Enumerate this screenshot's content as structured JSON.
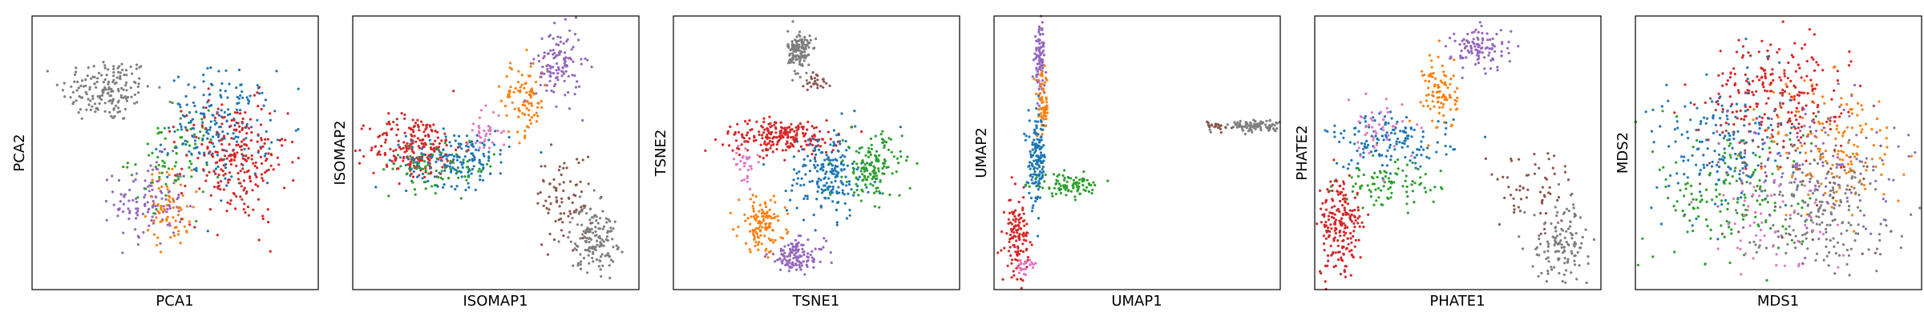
{
  "colors": {
    "c0": "#1f77b4",
    "c1": "#ff7f0e",
    "c2": "#2ca02c",
    "c3": "#d62728",
    "c4": "#9467bd",
    "c5": "#8c564b",
    "c6": "#e377c2",
    "c7": "#7f7f7f"
  },
  "chart_data": [
    {
      "type": "scatter",
      "xlabel": "PCA1",
      "ylabel": "PCA2",
      "xlim": [
        0,
        100
      ],
      "ylim": [
        0,
        100
      ],
      "ticks": false,
      "clusters": [
        {
          "color": "c7",
          "cx": 26,
          "cy": 73,
          "sx": 8,
          "sy": 6,
          "n": 170
        },
        {
          "color": "c4",
          "cx": 41,
          "cy": 32,
          "sx": 6,
          "sy": 8,
          "n": 120
        },
        {
          "color": "c1",
          "cx": 48,
          "cy": 30,
          "sx": 4,
          "sy": 7,
          "n": 70
        },
        {
          "color": "c2",
          "cx": 50,
          "cy": 48,
          "sx": 8,
          "sy": 8,
          "n": 80
        },
        {
          "color": "c0",
          "cx": 66,
          "cy": 60,
          "sx": 9,
          "sy": 10,
          "n": 200
        },
        {
          "color": "c3",
          "cx": 71,
          "cy": 47,
          "sx": 9,
          "sy": 11,
          "n": 240
        }
      ]
    },
    {
      "type": "scatter",
      "xlabel": "ISOMAP1",
      "ylabel": "ISOMAP2",
      "xlim": [
        0,
        100
      ],
      "ylim": [
        0,
        100
      ],
      "ticks": false,
      "clusters": [
        {
          "color": "c3",
          "cx": 22,
          "cy": 52,
          "sx": 8,
          "sy": 6,
          "n": 220
        },
        {
          "color": "c0",
          "cx": 37,
          "cy": 48,
          "sx": 9,
          "sy": 5,
          "n": 170
        },
        {
          "color": "c2",
          "cx": 30,
          "cy": 44,
          "sx": 10,
          "sy": 4,
          "n": 70
        },
        {
          "color": "c6",
          "cx": 46,
          "cy": 58,
          "sx": 3,
          "sy": 4,
          "n": 35
        },
        {
          "color": "c1",
          "cx": 60,
          "cy": 70,
          "sx": 4,
          "sy": 7,
          "n": 90
        },
        {
          "color": "c4",
          "cx": 72,
          "cy": 82,
          "sx": 4,
          "sy": 7,
          "n": 120
        },
        {
          "color": "c5",
          "cx": 74,
          "cy": 34,
          "sx": 5,
          "sy": 8,
          "n": 80
        },
        {
          "color": "c7",
          "cx": 84,
          "cy": 19,
          "sx": 4,
          "sy": 6,
          "n": 150
        }
      ]
    },
    {
      "type": "scatter",
      "xlabel": "TSNE1",
      "ylabel": "TSNE2",
      "xlim": [
        0,
        100
      ],
      "ylim": [
        0,
        100
      ],
      "ticks": false,
      "clusters": [
        {
          "color": "c7",
          "cx": 44,
          "cy": 87,
          "sx": 2,
          "sy": 4,
          "n": 140
        },
        {
          "color": "c5",
          "cx": 50,
          "cy": 76,
          "sx": 2,
          "sy": 2,
          "n": 25
        },
        {
          "color": "c3",
          "cx": 38,
          "cy": 56,
          "sx": 10,
          "sy": 3,
          "n": 220
        },
        {
          "color": "c0",
          "cx": 54,
          "cy": 42,
          "sx": 7,
          "sy": 8,
          "n": 200
        },
        {
          "color": "c2",
          "cx": 70,
          "cy": 45,
          "sx": 5,
          "sy": 6,
          "n": 140
        },
        {
          "color": "c1",
          "cx": 31,
          "cy": 24,
          "sx": 4,
          "sy": 5,
          "n": 120
        },
        {
          "color": "c4",
          "cx": 43,
          "cy": 12,
          "sx": 5,
          "sy": 3,
          "n": 120
        },
        {
          "color": "c6",
          "cx": 25,
          "cy": 46,
          "sx": 2,
          "sy": 3,
          "n": 30
        }
      ]
    },
    {
      "type": "scatter",
      "xlabel": "UMAP1",
      "ylabel": "UMAP2",
      "xlim": [
        0,
        100
      ],
      "ylim": [
        0,
        100
      ],
      "ticks": false,
      "clusters": [
        {
          "color": "c4",
          "cx": 16,
          "cy": 84,
          "sx": 1,
          "sy": 6,
          "n": 90
        },
        {
          "color": "c1",
          "cx": 17,
          "cy": 67,
          "sx": 1,
          "sy": 6,
          "n": 70
        },
        {
          "color": "c0",
          "cx": 15,
          "cy": 47,
          "sx": 1.5,
          "sy": 8,
          "n": 150
        },
        {
          "color": "c2",
          "cx": 26,
          "cy": 38,
          "sx": 6,
          "sy": 2,
          "n": 90
        },
        {
          "color": "c3",
          "cx": 8,
          "cy": 20,
          "sx": 2,
          "sy": 7,
          "n": 120
        },
        {
          "color": "c6",
          "cx": 11,
          "cy": 8,
          "sx": 2,
          "sy": 2,
          "n": 25
        },
        {
          "color": "c7",
          "cx": 90,
          "cy": 60,
          "sx": 6,
          "sy": 1,
          "n": 100
        },
        {
          "color": "c5",
          "cx": 78,
          "cy": 60,
          "sx": 2,
          "sy": 0.8,
          "n": 20
        }
      ]
    },
    {
      "type": "scatter",
      "xlabel": "PHATE1",
      "ylabel": "PHATE2",
      "xlim": [
        0,
        100
      ],
      "ylim": [
        0,
        100
      ],
      "ticks": false,
      "clusters": [
        {
          "color": "c4",
          "cx": 58,
          "cy": 88,
          "sx": 5,
          "sy": 4,
          "n": 110
        },
        {
          "color": "c1",
          "cx": 44,
          "cy": 72,
          "sx": 3,
          "sy": 7,
          "n": 90
        },
        {
          "color": "c0",
          "cx": 26,
          "cy": 54,
          "sx": 11,
          "sy": 5,
          "n": 150
        },
        {
          "color": "c2",
          "cx": 26,
          "cy": 38,
          "sx": 9,
          "sy": 4,
          "n": 90
        },
        {
          "color": "c6",
          "cx": 21,
          "cy": 57,
          "sx": 5,
          "sy": 6,
          "n": 45
        },
        {
          "color": "c3",
          "cx": 9,
          "cy": 23,
          "sx": 4,
          "sy": 9,
          "n": 200
        },
        {
          "color": "c5",
          "cx": 76,
          "cy": 38,
          "sx": 8,
          "sy": 7,
          "n": 60
        },
        {
          "color": "c7",
          "cx": 86,
          "cy": 17,
          "sx": 5,
          "sy": 7,
          "n": 130
        }
      ]
    },
    {
      "type": "scatter",
      "xlabel": "MDS1",
      "ylabel": "MDS2",
      "xlim": [
        0,
        100
      ],
      "ylim": [
        0,
        100
      ],
      "ticks": false,
      "clusters": [
        {
          "color": "c3",
          "cx": 49,
          "cy": 72,
          "sx": 12,
          "sy": 10,
          "n": 230
        },
        {
          "color": "c0",
          "cx": 30,
          "cy": 52,
          "sx": 12,
          "sy": 12,
          "n": 180
        },
        {
          "color": "c2",
          "cx": 35,
          "cy": 35,
          "sx": 14,
          "sy": 13,
          "n": 160
        },
        {
          "color": "c1",
          "cx": 70,
          "cy": 52,
          "sx": 12,
          "sy": 13,
          "n": 150
        },
        {
          "color": "c4",
          "cx": 63,
          "cy": 46,
          "sx": 14,
          "sy": 14,
          "n": 120
        },
        {
          "color": "c7",
          "cx": 65,
          "cy": 30,
          "sx": 13,
          "sy": 11,
          "n": 200
        },
        {
          "color": "c6",
          "cx": 45,
          "cy": 25,
          "sx": 12,
          "sy": 10,
          "n": 60
        },
        {
          "color": "c5",
          "cx": 52,
          "cy": 45,
          "sx": 18,
          "sy": 18,
          "n": 50
        }
      ]
    }
  ]
}
